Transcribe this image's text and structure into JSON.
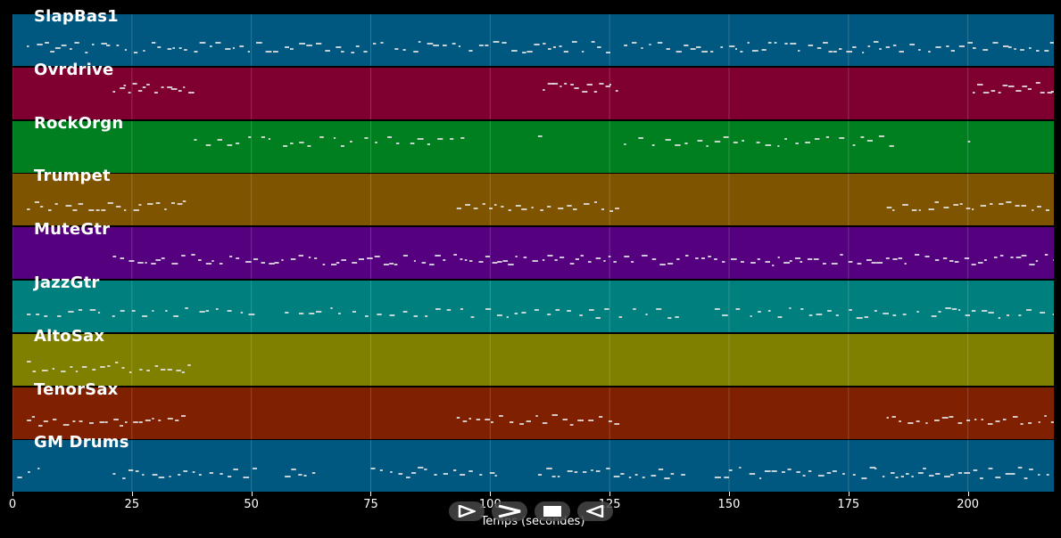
{
  "time_axis": {
    "max_seconds": 218,
    "ticks": [
      "0",
      "25",
      "50",
      "75",
      "100",
      "125",
      "150",
      "175",
      "200"
    ],
    "tick_values": [
      0,
      25,
      50,
      75,
      100,
      125,
      150,
      175,
      200
    ],
    "title": "Temps (secondes)"
  },
  "tracks": [
    {
      "name": "SlapBas1",
      "color": "#00577f",
      "segments": [
        [
          3,
          37
        ],
        [
          38,
          55
        ],
        [
          57,
          78
        ],
        [
          80,
          110
        ],
        [
          111,
          126
        ],
        [
          128,
          200
        ],
        [
          201,
          218
        ]
      ],
      "density": "dense"
    },
    {
      "name": "Ovrdrive",
      "color": "#7f0030",
      "segments": [
        [
          21,
          37
        ],
        [
          111,
          127
        ],
        [
          201,
          218
        ]
      ],
      "density": "sparse"
    },
    {
      "name": "RockOrgn",
      "color": "#007f20",
      "segments": [
        [
          38,
          94
        ],
        [
          110,
          111
        ],
        [
          128,
          184
        ],
        [
          200,
          201
        ]
      ],
      "density": "medium"
    },
    {
      "name": "Trumpet",
      "color": "#7f5400",
      "segments": [
        [
          3,
          37
        ],
        [
          93,
          127
        ],
        [
          183,
          218
        ]
      ],
      "density": "dense"
    },
    {
      "name": "MuteGtr",
      "color": "#54007f",
      "segments": [
        [
          21,
          218
        ]
      ],
      "density": "dense"
    },
    {
      "name": "JazzGtr",
      "color": "#007f7f",
      "segments": [
        [
          3,
          51
        ],
        [
          57,
          141
        ],
        [
          147,
          218
        ]
      ],
      "density": "medium"
    },
    {
      "name": "AltoSax",
      "color": "#7f7f00",
      "segments": [
        [
          3,
          37
        ]
      ],
      "density": "dense"
    },
    {
      "name": "TenorSax",
      "color": "#7f2000",
      "segments": [
        [
          3,
          37
        ],
        [
          93,
          127
        ],
        [
          183,
          218
        ]
      ],
      "density": "dense"
    },
    {
      "name": "GM Drums",
      "color": "#00577f",
      "segments": [
        [
          1,
          6
        ],
        [
          21,
          51
        ],
        [
          57,
          64
        ],
        [
          75,
          101
        ],
        [
          110,
          141
        ],
        [
          147,
          218
        ]
      ],
      "density": "dense"
    }
  ],
  "transport": {
    "buttons": [
      {
        "name": "play-icon",
        "label": "play"
      },
      {
        "name": "fast-forward-icon",
        "label": "faster"
      },
      {
        "name": "stop-icon",
        "label": "stop"
      },
      {
        "name": "rewind-icon",
        "label": "reverse"
      }
    ]
  }
}
